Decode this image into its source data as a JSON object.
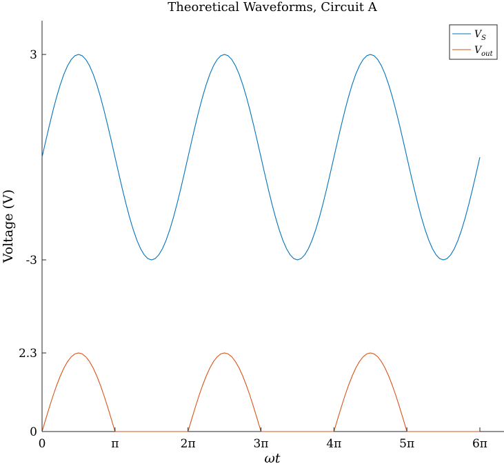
{
  "chart_data": {
    "type": "line",
    "title": "Theoretical Waveforms, Circuit A",
    "xlabel": "ωt",
    "ylabel": "Voltage (V)",
    "xlim": [
      0,
      18.8496
    ],
    "x_ticks": [
      {
        "value": 0,
        "label": "0"
      },
      {
        "value": 3.14159,
        "label": "π"
      },
      {
        "value": 6.28319,
        "label": "2π"
      },
      {
        "value": 9.42478,
        "label": "3π"
      },
      {
        "value": 12.56637,
        "label": "4π"
      },
      {
        "value": 15.70796,
        "label": "5π"
      },
      {
        "value": 18.84956,
        "label": "6π"
      }
    ],
    "grid": false,
    "legend_position": "top-right",
    "legend": [
      {
        "label": "V",
        "sub": "S",
        "color": "#0072BD"
      },
      {
        "label": "V",
        "sub": "out",
        "color": "#D95319"
      }
    ],
    "series": [
      {
        "name": "VS",
        "color": "#0072BD",
        "function": "3*sin(x)",
        "ylim": [
          -3,
          3
        ],
        "y_ticks": [
          {
            "value": 3,
            "label": "3"
          },
          {
            "value": -3,
            "label": "-3"
          }
        ]
      },
      {
        "name": "Vout",
        "color": "#D95319",
        "function": "max(0, 2.3*sin(x))",
        "ylim": [
          0,
          2.3
        ],
        "y_ticks": [
          {
            "value": 2.3,
            "label": "2.3"
          },
          {
            "value": 0,
            "label": "0"
          }
        ]
      }
    ]
  }
}
